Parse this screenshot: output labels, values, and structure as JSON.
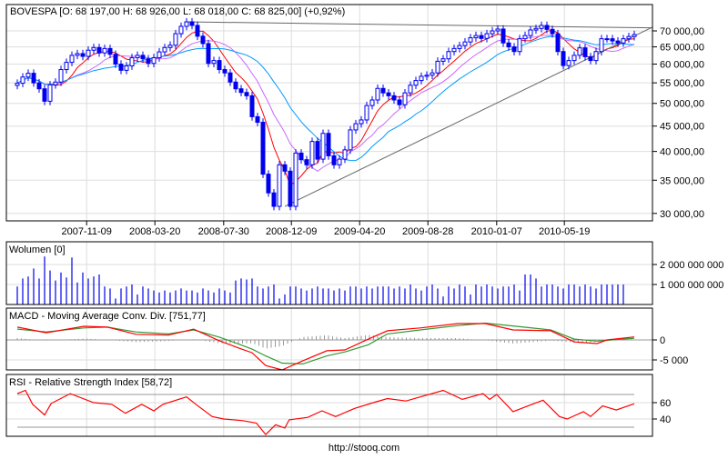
{
  "chart_data": [
    {
      "type": "candlestick",
      "title": "BOVESPA [O: 68 197,00  H: 68 926,00  L: 68 018,00  C: 68 825,00] (+0,92%)",
      "y_scale": "log",
      "ylim": [
        29000,
        75000
      ],
      "y_ticks": [
        30000,
        35000,
        40000,
        45000,
        50000,
        55000,
        60000,
        65000,
        70000
      ],
      "y_tick_labels": [
        "30 000,00",
        "35 000,00",
        "40 000,00",
        "45 000,00",
        "50 000,00",
        "55 000,00",
        "60 000,00",
        "65 000,00",
        "70 000,00"
      ],
      "x_ticks": [
        {
          "t": 12.7,
          "label": "2007-11-09"
        },
        {
          "t": 25.2,
          "label": "2008-03-20"
        },
        {
          "t": 37.8,
          "label": "2008-07-30"
        },
        {
          "t": 50.2,
          "label": "2008-12-09"
        },
        {
          "t": 62.7,
          "label": "2009-04-20"
        },
        {
          "t": 75.2,
          "label": "2009-08-28"
        },
        {
          "t": 87.8,
          "label": "2010-01-07"
        },
        {
          "t": 100.2,
          "label": "2010-05-19"
        }
      ],
      "closes": [
        54900,
        56500,
        57500,
        55000,
        53500,
        50500,
        54500,
        55200,
        58500,
        60500,
        62500,
        63000,
        62200,
        64000,
        64800,
        63200,
        64500,
        62800,
        60000,
        58300,
        59500,
        61800,
        62500,
        61500,
        60200,
        61800,
        63500,
        64800,
        65500,
        69100,
        71500,
        73000,
        71800,
        68300,
        66000,
        60200,
        61000,
        58500,
        57600,
        55200,
        53500,
        52600,
        51800,
        47000,
        45800,
        36000,
        33000,
        31000,
        37600,
        36500,
        31000,
        39700,
        38500,
        37600,
        41900,
        38600,
        43500,
        39200,
        37600,
        38600,
        40300,
        44200,
        45500,
        46300,
        49500,
        50800,
        53600,
        52500,
        51800,
        50800,
        49700,
        52500,
        54400,
        55600,
        56700,
        57000,
        57600,
        60800,
        61500,
        63600,
        64500,
        65400,
        66500,
        67800,
        68500,
        67600,
        69100,
        70000,
        70600,
        66200,
        65000,
        63600,
        67500,
        68500,
        70300,
        70800,
        71800,
        70500,
        69100,
        63600,
        59600,
        61000,
        62500,
        64700,
        62100,
        61000,
        63600,
        67500,
        67500,
        66800,
        66200,
        67500,
        68200,
        68825
      ],
      "moving_averages": [
        {
          "name": "MA short",
          "period": 6,
          "color": "#ff0000"
        },
        {
          "name": "MA medium",
          "period": 11,
          "color": "#cc66ff"
        },
        {
          "name": "MA long",
          "period": 18,
          "color": "#0099ff"
        }
      ],
      "trend_lines": [
        {
          "name": "resistance",
          "from": [
            31,
            73000
          ],
          "to": [
            116.3,
            71000
          ],
          "color": "#666666"
        },
        {
          "name": "support",
          "from": [
            49,
            31000
          ],
          "to": [
            116.3,
            71200
          ],
          "color": "#666666"
        }
      ]
    },
    {
      "type": "bar",
      "title": "Wolumen [0]",
      "unit": "millions",
      "y_ticks": [
        1000,
        2000
      ],
      "y_tick_labels": [
        "1 000 000 000",
        "2 000 000 000"
      ],
      "values": [
        900,
        1300,
        1400,
        1800,
        1300,
        2400,
        1700,
        1200,
        1600,
        1350,
        2350,
        1100,
        1600,
        1300,
        1400,
        1500,
        900,
        800,
        300,
        800,
        900,
        1000,
        500,
        900,
        800,
        700,
        600,
        700,
        600,
        700,
        800,
        700,
        700,
        600,
        800,
        700,
        600,
        800,
        700,
        600,
        1200,
        1300,
        1250,
        1300,
        900,
        800,
        900,
        1000,
        300,
        500,
        900,
        900,
        800,
        700,
        800,
        900,
        800,
        800,
        700,
        800,
        700,
        900,
        900,
        800,
        900,
        800,
        900,
        900,
        900,
        800,
        900,
        800,
        1000,
        800,
        700,
        900,
        1000,
        800,
        400,
        900,
        800,
        1000,
        900,
        500,
        1000,
        900,
        1000,
        900,
        800,
        900,
        900,
        1000,
        700,
        1500,
        1500,
        1300,
        900,
        1000,
        1000,
        900,
        800,
        1000,
        1000,
        900,
        1000,
        900,
        800,
        1000,
        1000,
        1000,
        1000,
        1000
      ]
    },
    {
      "type": "line",
      "title": "MACD - Moving Average Conv. Div. [751,77]",
      "y_ticks": [
        0,
        -5000
      ],
      "y_tick_labels": [
        "0",
        "-5 000"
      ],
      "ylim": [
        -7800,
        7400
      ],
      "t": [
        0,
        5.3,
        12.2,
        16.5,
        21.7,
        27.7,
        32.3,
        37,
        40.5,
        43,
        45.5,
        48.5,
        52.3,
        56.7,
        60,
        64.3,
        67.8,
        73.8,
        80.7,
        85.7,
        90.8,
        97.7,
        102,
        106.2,
        108,
        113
      ],
      "macd": [
        3200,
        1800,
        3400,
        3200,
        1400,
        1200,
        2700,
        -200,
        -2000,
        -3200,
        -6400,
        -7500,
        -5200,
        -2700,
        -2500,
        200,
        2300,
        3000,
        4100,
        4100,
        2500,
        2300,
        -500,
        -900,
        0,
        751.77
      ],
      "signal": [
        2700,
        2000,
        3000,
        3200,
        2000,
        1500,
        2500,
        700,
        -1000,
        -2300,
        -4000,
        -5800,
        -6000,
        -4000,
        -3000,
        -1200,
        1500,
        2500,
        3600,
        4200,
        3500,
        2500,
        200,
        -300,
        -100,
        400
      ],
      "colors": {
        "macd": "#ff0000",
        "signal": "#339933",
        "histogram": "#999999"
      }
    },
    {
      "type": "line",
      "title": "RSI - Relative Strength Index [58,72]",
      "y_ticks": [
        40,
        60
      ],
      "y_tick_labels": [
        "40",
        "60"
      ],
      "levels": [
        30,
        70
      ],
      "ylim": [
        18,
        94
      ],
      "t": [
        0,
        1.5,
        2.8,
        5,
        6.2,
        9.7,
        14,
        17.3,
        19.8,
        22.8,
        25,
        26.7,
        31,
        32.7,
        35.7,
        37.8,
        41.3,
        43.8,
        45.5,
        47.3,
        49,
        49.8,
        53.2,
        55.8,
        58.3,
        61.8,
        65.2,
        67.8,
        71.2,
        73.8,
        78,
        81.5,
        85.3,
        86.5,
        87.8,
        90.8,
        94.3,
        96.3,
        99.3,
        100.7,
        103.7,
        105,
        107.2,
        109.7,
        113
      ],
      "values": [
        71,
        75,
        58,
        45,
        59,
        71,
        60,
        58,
        47,
        58,
        50,
        58,
        67,
        58,
        43,
        40,
        38,
        35,
        21,
        33,
        29,
        39,
        42,
        50,
        43,
        53,
        60,
        65,
        62,
        67,
        75,
        64,
        71,
        64,
        70,
        49,
        58,
        63,
        43,
        40,
        49,
        43,
        56,
        51,
        58.72
      ],
      "color": "#ff0000"
    }
  ],
  "footer": {
    "source": "http://stooq.com"
  }
}
